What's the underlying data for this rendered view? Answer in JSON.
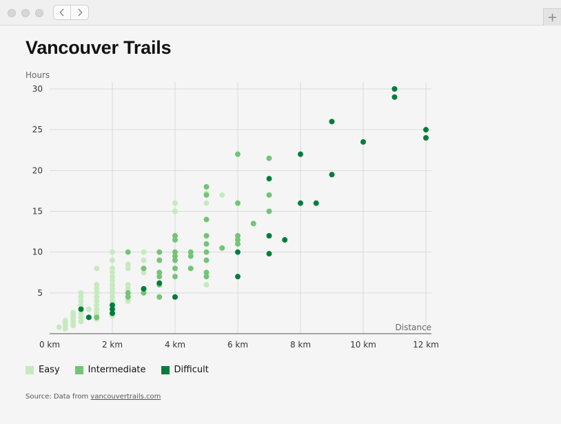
{
  "window": {
    "back_icon": "chevron-left-icon",
    "forward_icon": "chevron-right-icon",
    "new_tab_icon": "plus-icon",
    "new_tab_glyph": "+"
  },
  "page": {
    "title": "Vancouver Trails",
    "source_prefix": "Source: Data from",
    "source_link": "vancouvertrails.com"
  },
  "chart_data": {
    "type": "scatter",
    "title": "Vancouver Trails",
    "xlabel": "Distance",
    "ylabel": "Hours",
    "xlim": [
      0,
      12
    ],
    "ylim": [
      0,
      30
    ],
    "x_ticks": [
      "0 km",
      "2 km",
      "4 km",
      "6 km",
      "8 km",
      "10 km",
      "12 km"
    ],
    "y_ticks": [
      "5",
      "10",
      "15",
      "20",
      "25",
      "30"
    ],
    "grid": true,
    "legend_position": "bottom",
    "series": [
      {
        "name": "Easy",
        "color": "#c7e9c0",
        "points": [
          [
            0.3,
            0.8
          ],
          [
            0.5,
            0.6
          ],
          [
            0.5,
            1.0
          ],
          [
            0.5,
            1.3
          ],
          [
            0.5,
            1.6
          ],
          [
            0.75,
            1.0
          ],
          [
            0.75,
            1.3
          ],
          [
            0.75,
            1.6
          ],
          [
            0.75,
            2.0
          ],
          [
            0.75,
            2.3
          ],
          [
            0.75,
            2.6
          ],
          [
            1,
            1.5
          ],
          [
            1,
            2
          ],
          [
            1,
            2.5
          ],
          [
            1,
            3
          ],
          [
            1,
            3.5
          ],
          [
            1,
            4
          ],
          [
            1,
            4.5
          ],
          [
            1,
            5
          ],
          [
            1.5,
            1.8
          ],
          [
            1.5,
            2.2
          ],
          [
            1.5,
            2.5
          ],
          [
            1.5,
            3
          ],
          [
            1.5,
            3.5
          ],
          [
            1.5,
            4
          ],
          [
            1.5,
            4.5
          ],
          [
            1.5,
            5
          ],
          [
            1.5,
            5.5
          ],
          [
            1.5,
            6
          ],
          [
            1.5,
            8
          ],
          [
            1.25,
            3
          ],
          [
            2,
            2.2
          ],
          [
            2,
            2.5
          ],
          [
            2,
            3
          ],
          [
            2,
            3.5
          ],
          [
            2,
            4
          ],
          [
            2,
            4.5
          ],
          [
            2,
            5
          ],
          [
            2,
            5.5
          ],
          [
            2,
            6
          ],
          [
            2,
            6.5
          ],
          [
            2,
            7
          ],
          [
            2,
            7.5
          ],
          [
            2,
            8
          ],
          [
            2,
            9
          ],
          [
            2,
            10
          ],
          [
            2.5,
            4
          ],
          [
            2.5,
            4.5
          ],
          [
            2.5,
            5
          ],
          [
            2.5,
            5.5
          ],
          [
            2.5,
            6
          ],
          [
            2.5,
            8
          ],
          [
            2.5,
            8.5
          ],
          [
            3,
            7.5
          ],
          [
            3,
            8
          ],
          [
            3,
            9
          ],
          [
            3,
            10
          ],
          [
            4,
            15
          ],
          [
            4,
            16
          ],
          [
            5,
            6
          ],
          [
            5,
            16
          ],
          [
            5,
            17.2
          ],
          [
            5.5,
            17
          ]
        ]
      },
      {
        "name": "Intermediate",
        "color": "#74c476",
        "points": [
          [
            1.5,
            2
          ],
          [
            2.5,
            4.5
          ],
          [
            2.5,
            5
          ],
          [
            2.5,
            10
          ],
          [
            3,
            5
          ],
          [
            3,
            5.5
          ],
          [
            3,
            8
          ],
          [
            3.5,
            4.5
          ],
          [
            3.5,
            6
          ],
          [
            3.5,
            7
          ],
          [
            3.5,
            7.5
          ],
          [
            3.5,
            9
          ],
          [
            3.5,
            10
          ],
          [
            4,
            7
          ],
          [
            4,
            8
          ],
          [
            4,
            9
          ],
          [
            4,
            9.5
          ],
          [
            4,
            10
          ],
          [
            4,
            11.5
          ],
          [
            4,
            12
          ],
          [
            4.5,
            8
          ],
          [
            4.5,
            9.5
          ],
          [
            4.5,
            10
          ],
          [
            5,
            7
          ],
          [
            5,
            7.5
          ],
          [
            5,
            9
          ],
          [
            5,
            10
          ],
          [
            5,
            11
          ],
          [
            5,
            12
          ],
          [
            5,
            14
          ],
          [
            5,
            17
          ],
          [
            5,
            18
          ],
          [
            5.5,
            10.5
          ],
          [
            6,
            11
          ],
          [
            6,
            11.5
          ],
          [
            6,
            12
          ],
          [
            6,
            16
          ],
          [
            6,
            22
          ],
          [
            6.5,
            13.5
          ],
          [
            7,
            15
          ],
          [
            7,
            17
          ],
          [
            7,
            21.5
          ]
        ]
      },
      {
        "name": "Difficult",
        "color": "#007d3c",
        "points": [
          [
            1,
            3
          ],
          [
            1.25,
            2
          ],
          [
            2,
            2.5
          ],
          [
            2,
            3
          ],
          [
            2,
            3.5
          ],
          [
            3,
            5.5
          ],
          [
            3.5,
            6.2
          ],
          [
            4,
            4.5
          ],
          [
            6,
            7
          ],
          [
            6,
            10
          ],
          [
            7,
            9.8
          ],
          [
            7,
            12
          ],
          [
            7,
            19
          ],
          [
            7.5,
            11.5
          ],
          [
            8,
            16
          ],
          [
            8,
            22
          ],
          [
            8.5,
            16
          ],
          [
            9,
            19.5
          ],
          [
            9,
            26
          ],
          [
            10,
            23.5
          ],
          [
            11,
            29
          ],
          [
            11,
            30
          ],
          [
            12,
            24
          ],
          [
            12,
            25
          ]
        ]
      }
    ]
  }
}
